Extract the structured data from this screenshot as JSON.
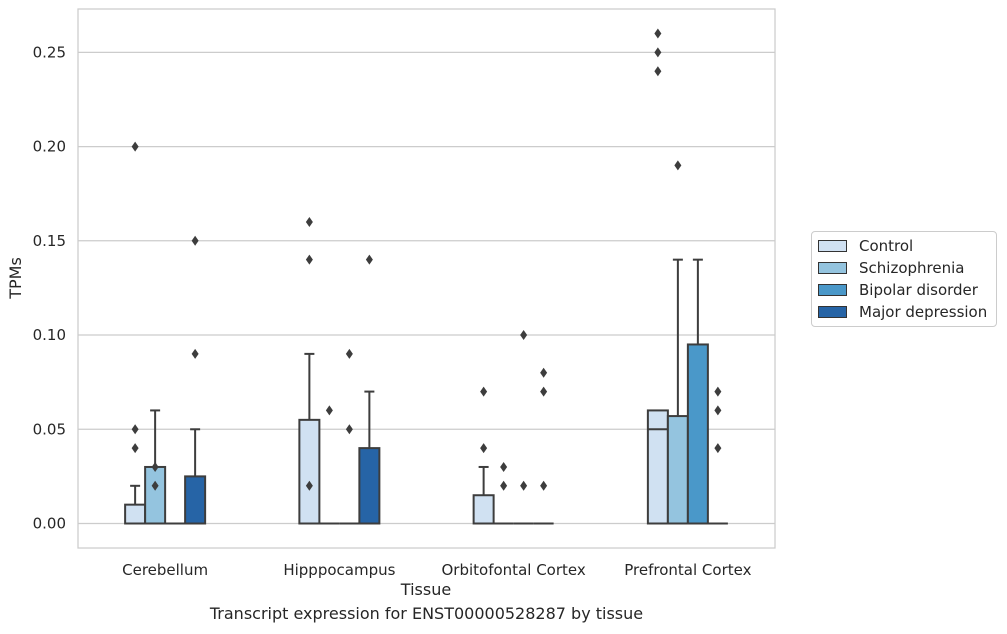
{
  "chart_data": {
    "type": "bar",
    "title": "",
    "caption": "Transcript expression for ENST00000528287 by tissue",
    "xlabel": "Tissue",
    "ylabel": "TPMs",
    "ylim": [
      -0.013,
      0.273
    ],
    "yticks": [
      "0.00",
      "0.05",
      "0.10",
      "0.15",
      "0.20",
      "0.25"
    ],
    "ytick_values": [
      0,
      0.05,
      0.1,
      0.15,
      0.2,
      0.25
    ],
    "grid": true,
    "legend_position": "right",
    "categories": [
      "Cerebellum",
      "Hipppocampus",
      "Orbitofontal Cortex",
      "Prefrontal Cortex"
    ],
    "series": [
      {
        "name": "Control",
        "color": "#d0e1f2",
        "values": [
          0.01,
          0.055,
          0.015,
          0.06
        ],
        "whisker": [
          0.02,
          0.09,
          0.03,
          0.06
        ],
        "median": [
          null,
          null,
          null,
          0.05
        ],
        "outliers": [
          [
            0.2,
            0.05,
            0.04
          ],
          [
            0.16,
            0.14,
            0.02
          ],
          [
            0.07,
            0.04
          ],
          [
            0.26,
            0.25,
            0.24
          ]
        ]
      },
      {
        "name": "Schizophrenia",
        "color": "#94c4df",
        "values": [
          0.03,
          0,
          0,
          0.057
        ],
        "whisker": [
          0.06,
          null,
          null,
          0.14
        ],
        "median": [
          null,
          null,
          null,
          null
        ],
        "outliers": [
          [
            0.03,
            0.02
          ],
          [
            0.06
          ],
          [
            0.03,
            0.02
          ],
          [
            0.19
          ]
        ]
      },
      {
        "name": "Bipolar disorder",
        "color": "#4a98c9",
        "values": [
          0,
          0,
          0,
          0.095
        ],
        "whisker": [
          null,
          null,
          null,
          0.14
        ],
        "median": [
          null,
          null,
          null,
          null
        ],
        "outliers": [
          [],
          [
            0.09,
            0.05
          ],
          [
            0.1,
            0.02
          ],
          []
        ]
      },
      {
        "name": "Major depression",
        "color": "#2664a6",
        "values": [
          0.025,
          0.04,
          0,
          0
        ],
        "whisker": [
          0.05,
          0.07,
          null,
          null
        ],
        "median": [
          null,
          null,
          null,
          null
        ],
        "outliers": [
          [
            0.15,
            0.09
          ],
          [
            0.14
          ],
          [
            0.08,
            0.07,
            0.02
          ],
          [
            0.07,
            0.06,
            0.04
          ]
        ]
      }
    ]
  }
}
